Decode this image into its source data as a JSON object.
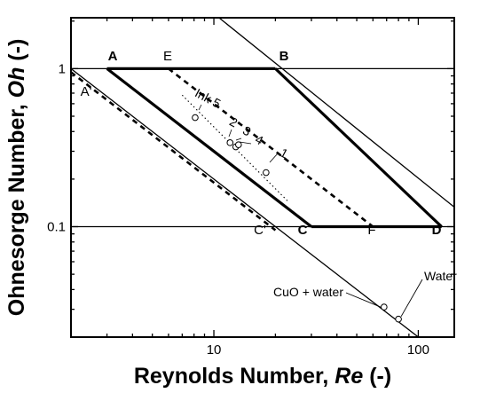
{
  "chart_data": {
    "type": "scatter",
    "title": "",
    "xlabel_text": "Reynolds Number, ",
    "xlabel_italic": "Re",
    "xlabel_suffix": " (-)",
    "ylabel_text": "Ohnesorge Number, ",
    "ylabel_italic": "Oh",
    "ylabel_suffix": " (-)",
    "x_scale": "log",
    "y_scale": "log",
    "xlim": [
      2,
      150
    ],
    "ylim": [
      0.02,
      2.1
    ],
    "grid": false,
    "x_ticks": [
      {
        "value": 10,
        "label": "10"
      },
      {
        "value": 100,
        "label": "100"
      }
    ],
    "y_ticks": [
      {
        "value": 0.1,
        "label": "0.1"
      },
      {
        "value": 1,
        "label": "1"
      }
    ],
    "region_lines": [
      {
        "name": "Oh=1",
        "style": "thin",
        "points": [
          [
            2,
            1
          ],
          [
            150,
            1
          ]
        ]
      },
      {
        "name": "Oh=0.1",
        "style": "thin",
        "points": [
          [
            2,
            0.1
          ],
          [
            150,
            0.1
          ]
        ]
      },
      {
        "name": "Oh Re=2",
        "style": "thin",
        "points": [
          [
            2,
            1
          ],
          [
            140,
            0.0143
          ]
        ]
      },
      {
        "name": "Oh Re=20",
        "style": "thin",
        "points": [
          [
            10.6,
            2.1
          ],
          [
            150,
            0.133
          ]
        ]
      },
      {
        "name": "A-B",
        "style": "thick",
        "points": [
          [
            3,
            1
          ],
          [
            20,
            1
          ]
        ]
      },
      {
        "name": "A-C",
        "style": "thick",
        "points": [
          [
            3,
            1
          ],
          [
            30,
            0.1
          ]
        ]
      },
      {
        "name": "B-D",
        "style": "thick",
        "points": [
          [
            20,
            1
          ],
          [
            130,
            0.1
          ]
        ]
      },
      {
        "name": "C-D",
        "style": "thick",
        "points": [
          [
            30,
            0.1
          ],
          [
            130,
            0.1
          ]
        ]
      },
      {
        "name": "E-F",
        "style": "dashed",
        "points": [
          [
            6,
            1
          ],
          [
            60,
            0.1
          ]
        ]
      },
      {
        "name": "A'-C'",
        "style": "dashed",
        "points": [
          [
            2,
            0.95
          ],
          [
            20,
            0.095
          ]
        ]
      },
      {
        "name": "ink-fit",
        "style": "dotted",
        "points": [
          [
            7,
            0.68
          ],
          [
            23,
            0.145
          ]
        ]
      }
    ],
    "region_labels": [
      {
        "text": "A",
        "bold": true
      },
      {
        "text": "B",
        "bold": true
      },
      {
        "text": "C",
        "bold": true
      },
      {
        "text": "D",
        "bold": true
      },
      {
        "text": "E",
        "bold": false
      },
      {
        "text": "F",
        "bold": false
      },
      {
        "text": "A'",
        "bold": false
      },
      {
        "text": "C'",
        "bold": false
      }
    ],
    "ink_points": [
      {
        "label": "1",
        "x": 18,
        "y": 0.22
      },
      {
        "label": "2",
        "x": 12,
        "y": 0.34
      },
      {
        "label": "3",
        "x": 12.8,
        "y": 0.32
      },
      {
        "label": "4",
        "x": 13.2,
        "y": 0.33
      },
      {
        "label": "5",
        "x": 8.1,
        "y": 0.49
      }
    ],
    "ink_prefix": "Ink ",
    "other_points": [
      {
        "label": "CuO + water",
        "x": 68,
        "y": 0.031
      },
      {
        "label": "Water",
        "x": 80,
        "y": 0.026
      }
    ]
  }
}
